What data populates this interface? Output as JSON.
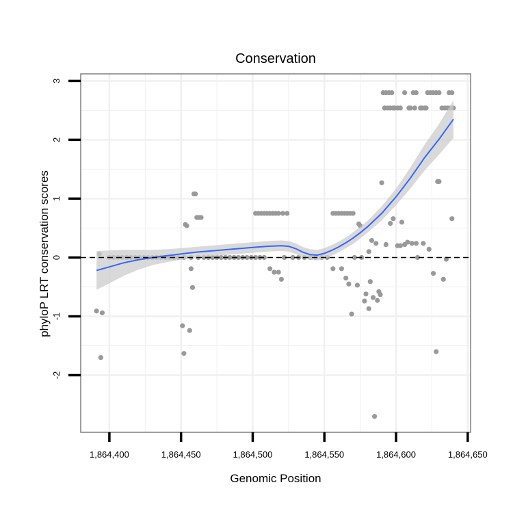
{
  "chart_data": {
    "type": "scatter",
    "title": "Conservation",
    "xlabel": "Genomic Position",
    "ylabel": "phyloP LRT conservation scores",
    "xlim": [
      1864380,
      1864652
    ],
    "ylim": [
      -2.97,
      3.12
    ],
    "x_ticks": [
      1864400,
      1864450,
      1864500,
      1864550,
      1864600,
      1864650
    ],
    "x_tick_labels": [
      "1,864,400",
      "1,864,450",
      "1,864,500",
      "1,864,550",
      "1,864,600",
      "1,864,650"
    ],
    "y_ticks": [
      -2,
      -1,
      0,
      1,
      2,
      3
    ],
    "y_tick_labels": [
      "-2",
      "-1",
      "0",
      "1",
      "2",
      "3"
    ],
    "reference_line": {
      "y": 0,
      "style": "dashed"
    },
    "colors": {
      "points": "#999999",
      "smooth_line": "#3366FF",
      "confidence_band": "#cccccc",
      "grid": "#f0f0f0",
      "panel_border": "#7f7f7f"
    },
    "points": [
      [
        1864391,
        -0.91
      ],
      [
        1864393,
        0.06
      ],
      [
        1864394,
        -1.7
      ],
      [
        1864395,
        -0.94
      ],
      [
        1864400,
        0
      ],
      [
        1864403,
        0
      ],
      [
        1864406,
        0
      ],
      [
        1864409,
        0
      ],
      [
        1864412,
        0
      ],
      [
        1864415,
        0
      ],
      [
        1864418,
        0
      ],
      [
        1864421,
        0
      ],
      [
        1864424,
        0
      ],
      [
        1864427,
        0
      ],
      [
        1864430,
        0
      ],
      [
        1864433,
        0
      ],
      [
        1864436,
        0
      ],
      [
        1864439,
        0
      ],
      [
        1864442,
        0
      ],
      [
        1864445,
        0
      ],
      [
        1864448,
        0
      ],
      [
        1864451,
        -1.16
      ],
      [
        1864452,
        -1.63
      ],
      [
        1864453,
        0.56
      ],
      [
        1864454,
        0.54
      ],
      [
        1864456,
        -1.24
      ],
      [
        1864457,
        -0.19
      ],
      [
        1864458,
        -0.51
      ],
      [
        1864459,
        1.08
      ],
      [
        1864460,
        1.08
      ],
      [
        1864461,
        0.68
      ],
      [
        1864462,
        0.68
      ],
      [
        1864463,
        0.68
      ],
      [
        1864464,
        0.68
      ],
      [
        1864452,
        0
      ],
      [
        1864457,
        0
      ],
      [
        1864462,
        0
      ],
      [
        1864466,
        0
      ],
      [
        1864469,
        0
      ],
      [
        1864472,
        0
      ],
      [
        1864475,
        0
      ],
      [
        1864478,
        0
      ],
      [
        1864481,
        0
      ],
      [
        1864484,
        0
      ],
      [
        1864487,
        0
      ],
      [
        1864490,
        0
      ],
      [
        1864493,
        0
      ],
      [
        1864496,
        0
      ],
      [
        1864499,
        0
      ],
      [
        1864502,
        0
      ],
      [
        1864505,
        0
      ],
      [
        1864508,
        0
      ],
      [
        1864502,
        0.75
      ],
      [
        1864504,
        0.75
      ],
      [
        1864506,
        0.75
      ],
      [
        1864508,
        0.75
      ],
      [
        1864510,
        0.75
      ],
      [
        1864512,
        0.75
      ],
      [
        1864514,
        0.75
      ],
      [
        1864516,
        0.75
      ],
      [
        1864518,
        0.75
      ],
      [
        1864521,
        0.75
      ],
      [
        1864524,
        0.75
      ],
      [
        1864512,
        -0.19
      ],
      [
        1864515,
        -0.25
      ],
      [
        1864518,
        -0.25
      ],
      [
        1864520,
        -0.37
      ],
      [
        1864522,
        0
      ],
      [
        1864528,
        0
      ],
      [
        1864532,
        0
      ],
      [
        1864536,
        0
      ],
      [
        1864540,
        0
      ],
      [
        1864544,
        0
      ],
      [
        1864548,
        0
      ],
      [
        1864552,
        0
      ],
      [
        1864556,
        0.75
      ],
      [
        1864558,
        0.75
      ],
      [
        1864560,
        0.75
      ],
      [
        1864562,
        0.75
      ],
      [
        1864564,
        0.75
      ],
      [
        1864566,
        0.75
      ],
      [
        1864568,
        0.75
      ],
      [
        1864570,
        0.75
      ],
      [
        1864556,
        -0.19
      ],
      [
        1864562,
        -0.19
      ],
      [
        1864565,
        -0.35
      ],
      [
        1864567,
        -0.45
      ],
      [
        1864569,
        -0.96
      ],
      [
        1864571,
        0
      ],
      [
        1864573,
        -0.47
      ],
      [
        1864574,
        0.57
      ],
      [
        1864575,
        0.54
      ],
      [
        1864576,
        0
      ],
      [
        1864578,
        -0.74
      ],
      [
        1864579,
        -0.62
      ],
      [
        1864581,
        0.1
      ],
      [
        1864581,
        -0.87
      ],
      [
        1864582,
        -0.41
      ],
      [
        1864583,
        0.29
      ],
      [
        1864584,
        -0.68
      ],
      [
        1864585,
        -2.7
      ],
      [
        1864586,
        0.24
      ],
      [
        1864587,
        -0.73
      ],
      [
        1864588,
        -0.58
      ],
      [
        1864589,
        -0.63
      ],
      [
        1864590,
        1.27
      ],
      [
        1864591,
        2.8
      ],
      [
        1864592,
        2.54
      ],
      [
        1864593,
        2.8
      ],
      [
        1864594,
        2.54
      ],
      [
        1864595,
        2.8
      ],
      [
        1864596,
        2.54
      ],
      [
        1864597,
        2.8
      ],
      [
        1864598,
        2.54
      ],
      [
        1864599,
        2.54
      ],
      [
        1864601,
        2.54
      ],
      [
        1864603,
        2.54
      ],
      [
        1864593,
        0.22
      ],
      [
        1864596,
        0.58
      ],
      [
        1864598,
        0.66
      ],
      [
        1864601,
        0.2
      ],
      [
        1864603,
        0.2
      ],
      [
        1864604,
        0.6
      ],
      [
        1864606,
        0.22
      ],
      [
        1864606,
        2.8
      ],
      [
        1864608,
        0.26
      ],
      [
        1864609,
        2.54
      ],
      [
        1864610,
        2.54
      ],
      [
        1864611,
        0.24
      ],
      [
        1864612,
        2.8
      ],
      [
        1864613,
        2.54
      ],
      [
        1864614,
        0.24
      ],
      [
        1864614,
        2.8
      ],
      [
        1864615,
        0
      ],
      [
        1864617,
        2.54
      ],
      [
        1864618,
        2.54
      ],
      [
        1864619,
        0.24
      ],
      [
        1864620,
        2.54
      ],
      [
        1864621,
        2.54
      ],
      [
        1864622,
        2.8
      ],
      [
        1864624,
        2.8
      ],
      [
        1864626,
        2.8
      ],
      [
        1864628,
        2.8
      ],
      [
        1864630,
        2.8
      ],
      [
        1864623,
        0.14
      ],
      [
        1864626,
        -0.27
      ],
      [
        1864628,
        -1.6
      ],
      [
        1864629,
        1.29
      ],
      [
        1864630,
        1.29
      ],
      [
        1864632,
        2.54
      ],
      [
        1864634,
        2.54
      ],
      [
        1864636,
        2.54
      ],
      [
        1864638,
        2.54
      ],
      [
        1864640,
        2.54
      ],
      [
        1864633,
        -0.37
      ],
      [
        1864635,
        -0.03
      ],
      [
        1864637,
        2.8
      ],
      [
        1864639,
        2.8
      ],
      [
        1864639,
        0.66
      ]
    ],
    "smooth": {
      "x": [
        1864391,
        1864400,
        1864410,
        1864420,
        1864430,
        1864440,
        1864450,
        1864460,
        1864470,
        1864480,
        1864490,
        1864500,
        1864510,
        1864520,
        1864525,
        1864530,
        1864535,
        1864540,
        1864545,
        1864550,
        1864555,
        1864560,
        1864565,
        1864570,
        1864575,
        1864580,
        1864590,
        1864600,
        1864610,
        1864620,
        1864630,
        1864640
      ],
      "y": [
        -0.22,
        -0.16,
        -0.09,
        -0.04,
        0,
        0.03,
        0.06,
        0.09,
        0.11,
        0.13,
        0.15,
        0.17,
        0.19,
        0.2,
        0.19,
        0.15,
        0.09,
        0.05,
        0.04,
        0.07,
        0.12,
        0.18,
        0.25,
        0.33,
        0.42,
        0.52,
        0.75,
        1.03,
        1.35,
        1.7,
        2.01,
        2.35
      ],
      "se": [
        0.33,
        0.28,
        0.22,
        0.17,
        0.13,
        0.11,
        0.1,
        0.09,
        0.09,
        0.09,
        0.09,
        0.09,
        0.09,
        0.09,
        0.09,
        0.09,
        0.09,
        0.09,
        0.09,
        0.09,
        0.09,
        0.09,
        0.09,
        0.1,
        0.1,
        0.1,
        0.12,
        0.14,
        0.18,
        0.22,
        0.26,
        0.32
      ]
    }
  }
}
